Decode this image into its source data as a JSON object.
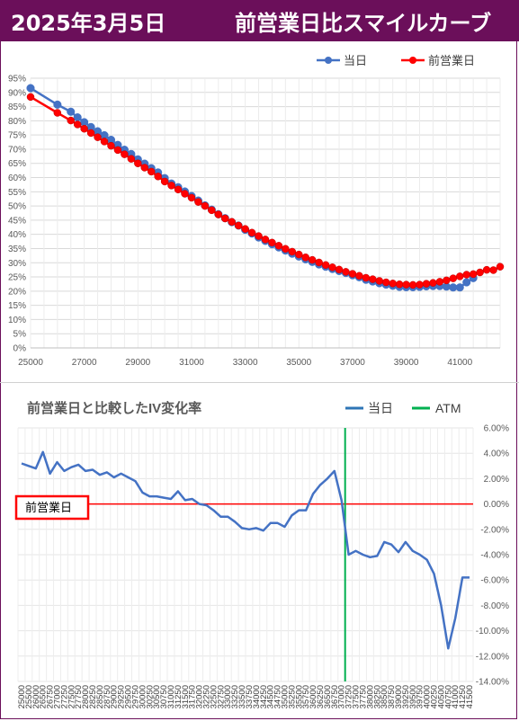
{
  "header": {
    "date": "2025年3月5日",
    "title": "前営業日比スマイルカーブ"
  },
  "colors": {
    "header_bg": "#6b0f5a",
    "today": "#4472c4",
    "prev": "#ff0000",
    "atm": "#00b050",
    "zero_line": "#ff0000",
    "grid": "#d9d9d9"
  },
  "chart_data": [
    {
      "type": "line",
      "title": "",
      "legend_position": "top-right",
      "ylim": [
        0,
        95
      ],
      "yticks": [
        "0%",
        "5%",
        "10%",
        "15%",
        "20%",
        "25%",
        "30%",
        "35%",
        "40%",
        "45%",
        "50%",
        "55%",
        "60%",
        "65%",
        "70%",
        "75%",
        "80%",
        "85%",
        "90%",
        "95%"
      ],
      "xlim": [
        25000,
        42500
      ],
      "xticks": [
        "25000",
        "27000",
        "29000",
        "31000",
        "33000",
        "35000",
        "37000",
        "39000",
        "41000"
      ],
      "series": [
        {
          "name": "当日",
          "color": "#4472c4",
          "x": [
            25000,
            26000,
            26500,
            26750,
            27000,
            27250,
            27500,
            27750,
            28000,
            28250,
            28500,
            28750,
            29000,
            29250,
            29500,
            29750,
            30000,
            30250,
            30500,
            30750,
            31000,
            31250,
            31500,
            31750,
            32000,
            32250,
            32500,
            32750,
            33000,
            33250,
            33500,
            33750,
            34000,
            34250,
            34500,
            34750,
            35000,
            35250,
            35500,
            35750,
            36000,
            36250,
            36500,
            36750,
            37000,
            37250,
            37500,
            37750,
            38000,
            38250,
            38500,
            38750,
            39000,
            39250,
            39500,
            39750,
            40000,
            40250,
            40500,
            40750,
            41000,
            41250,
            41500
          ],
          "y": [
            91.5,
            85.7,
            83.2,
            81.2,
            79.5,
            77.8,
            76.3,
            74.9,
            73.3,
            71.5,
            69.8,
            68.3,
            66.4,
            64.9,
            63.3,
            61.8,
            59.8,
            57.9,
            56.6,
            55.1,
            53.5,
            51.9,
            50.2,
            48.7,
            47.1,
            45.7,
            44.3,
            43.1,
            41.6,
            40.3,
            38.9,
            37.7,
            36.5,
            35.4,
            34.3,
            33.2,
            32.2,
            31.2,
            30.3,
            29.4,
            28.6,
            27.8,
            27.1,
            26.4,
            25.6,
            24.9,
            24.0,
            23.4,
            22.8,
            22.3,
            21.9,
            21.5,
            21.4,
            21.4,
            21.5,
            21.7,
            21.8,
            21.8,
            21.6,
            21.3,
            21.3,
            23.1,
            24.6
          ]
        },
        {
          "name": "前営業日",
          "color": "#ff0000",
          "x": [
            25000,
            26000,
            26500,
            26750,
            27000,
            27250,
            27500,
            27750,
            28000,
            28250,
            28500,
            28750,
            29000,
            29250,
            29500,
            29750,
            30000,
            30250,
            30500,
            30750,
            31000,
            31250,
            31500,
            31750,
            32000,
            32250,
            32500,
            32750,
            33000,
            33250,
            33500,
            33750,
            34000,
            34250,
            34500,
            34750,
            35000,
            35250,
            35500,
            35750,
            36000,
            36250,
            36500,
            36750,
            37000,
            37250,
            37500,
            37750,
            38000,
            38250,
            38500,
            38750,
            39000,
            39250,
            39500,
            39750,
            40000,
            40250,
            40500,
            40750,
            41000,
            41250,
            41500,
            41750,
            42000,
            42250,
            42500
          ],
          "y": [
            88.4,
            82.8,
            80.1,
            78.7,
            77.2,
            75.7,
            74.2,
            72.7,
            71.2,
            69.7,
            68.2,
            66.6,
            65.0,
            63.5,
            62.1,
            60.4,
            58.6,
            57.2,
            55.8,
            54.3,
            52.9,
            51.4,
            50.0,
            48.5,
            47.0,
            45.6,
            44.4,
            43.1,
            41.9,
            40.6,
            39.4,
            38.2,
            37.1,
            36.0,
            34.9,
            33.9,
            32.9,
            31.9,
            31.0,
            30.1,
            29.2,
            28.4,
            27.6,
            26.8,
            26.1,
            25.4,
            24.7,
            24.2,
            23.6,
            23.1,
            22.7,
            22.4,
            22.3,
            22.2,
            22.3,
            22.6,
            22.9,
            23.3,
            23.8,
            24.5,
            25.2,
            25.8,
            26.0,
            26.6,
            27.5,
            27.4,
            28.6
          ]
        }
      ]
    },
    {
      "type": "line",
      "title": "前営業日と比較したIV変化率",
      "legend_position": "top-right",
      "ylim": [
        -14,
        6
      ],
      "yticks": [
        "6.00%",
        "4.00%",
        "2.00%",
        "0.00%",
        "-2.00%",
        "-4.00%",
        "-6.00%",
        "-8.00%",
        "-10.00%",
        "-12.00%",
        "-14.00%"
      ],
      "xticks": [
        "25000",
        "25500",
        "26000",
        "26500",
        "26750",
        "27000",
        "27250",
        "27500",
        "27750",
        "28000",
        "28250",
        "28500",
        "28750",
        "29000",
        "29250",
        "29500",
        "29750",
        "30000",
        "30250",
        "30500",
        "30750",
        "31000",
        "31250",
        "31500",
        "31750",
        "32000",
        "32250",
        "32500",
        "32750",
        "33000",
        "33250",
        "33500",
        "33750",
        "34000",
        "34250",
        "34500",
        "34750",
        "35000",
        "35250",
        "35500",
        "35750",
        "36000",
        "36250",
        "36500",
        "36750",
        "37000",
        "37250",
        "37500",
        "37750",
        "38000",
        "38250",
        "38500",
        "38750",
        "39000",
        "39250",
        "39500",
        "39750",
        "40000",
        "40250",
        "40500",
        "40750",
        "41000",
        "41250",
        "41500"
      ],
      "series": [
        {
          "name": "当日",
          "color": "#4472c4",
          "values": [
            3.2,
            3.0,
            2.8,
            4.1,
            2.4,
            3.3,
            2.6,
            2.9,
            3.1,
            2.6,
            2.7,
            2.3,
            2.5,
            2.1,
            2.4,
            2.1,
            1.8,
            0.9,
            0.6,
            0.6,
            0.5,
            0.4,
            1.0,
            0.3,
            0.4,
            0.0,
            -0.1,
            -0.5,
            -1.0,
            -1.0,
            -1.4,
            -1.9,
            -2.0,
            -1.9,
            -2.1,
            -1.5,
            -1.5,
            -1.8,
            -0.9,
            -0.5,
            -0.5,
            0.8,
            1.5,
            2.0,
            2.6,
            0.3,
            -4.0,
            -3.7,
            -4.0,
            -4.2,
            -4.1,
            -3.0,
            -3.2,
            -3.8,
            -3.0,
            -3.7,
            -4.0,
            -4.4,
            -5.5,
            -8.0,
            -11.4,
            -9.0,
            -5.8,
            -5.8
          ]
        },
        {
          "name": "ATM",
          "color": "#00b050",
          "x_category": "37250"
        }
      ],
      "annotations": [
        {
          "text": "前営業日",
          "y": 0
        }
      ]
    }
  ]
}
